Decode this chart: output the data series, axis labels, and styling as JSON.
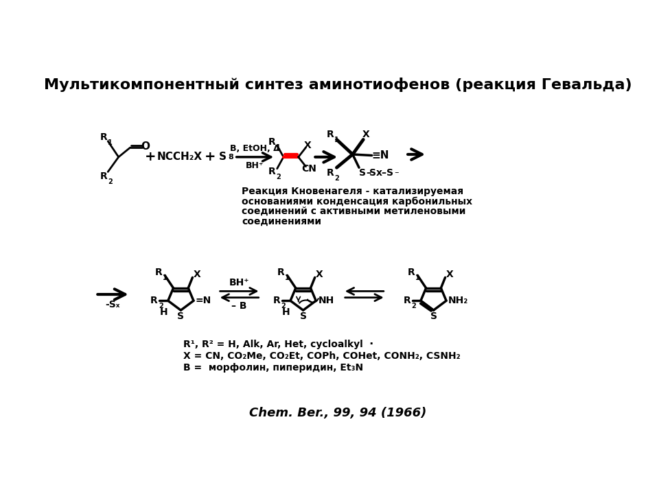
{
  "title": "Мультикомпонентный синтез аминотиофенов (реакция Гевальда)",
  "bg_color": "#ffffff",
  "citation": "Chem. Ber., 99, 94 (1966)",
  "knoevenagel_text": [
    "Реакция Кновенагеля - катализируемая",
    "основаниями конденсация карбонильных",
    "соединений с активными метиленовыми",
    "соединениями"
  ],
  "legend_line1": "R¹, R² = H, Alk, Ar, Het, cycloalkyl",
  "legend_line2": "X = CN, CO₂Me, CO₂Et, COPh, COHet, CONH₂, CSNH₂",
  "legend_line3": "B =  морфолин, пиперидин, Et₃N"
}
